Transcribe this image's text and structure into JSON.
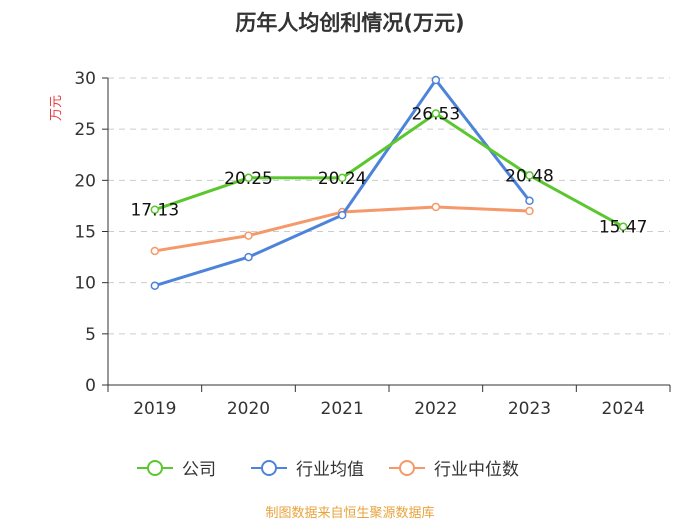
{
  "chart_data": {
    "type": "line",
    "title": "历年人均创利情况(万元)",
    "ylabel": "万元",
    "xlabel": "",
    "ylim": [
      0,
      30
    ],
    "yticks": [
      0,
      5,
      10,
      15,
      20,
      25,
      30
    ],
    "categories": [
      "2019",
      "2020",
      "2021",
      "2022",
      "2023",
      "2024"
    ],
    "series": [
      {
        "name": "公司",
        "color": "#5bc72e",
        "values": [
          17.13,
          20.25,
          20.24,
          26.53,
          20.48,
          15.47
        ],
        "labels": [
          "17.13",
          "20.25",
          "20.24",
          "26.53",
          "20.48",
          "15.47"
        ]
      },
      {
        "name": "行业均值",
        "color": "#4e83da",
        "values": [
          9.7,
          12.5,
          16.6,
          29.8,
          18.0,
          null
        ]
      },
      {
        "name": "行业中位数",
        "color": "#f5996a",
        "values": [
          13.1,
          14.6,
          16.9,
          17.4,
          17.0,
          null
        ]
      }
    ],
    "grid": true,
    "legend": "bottom-center",
    "source": "制图数据来自恒生聚源数据库"
  }
}
